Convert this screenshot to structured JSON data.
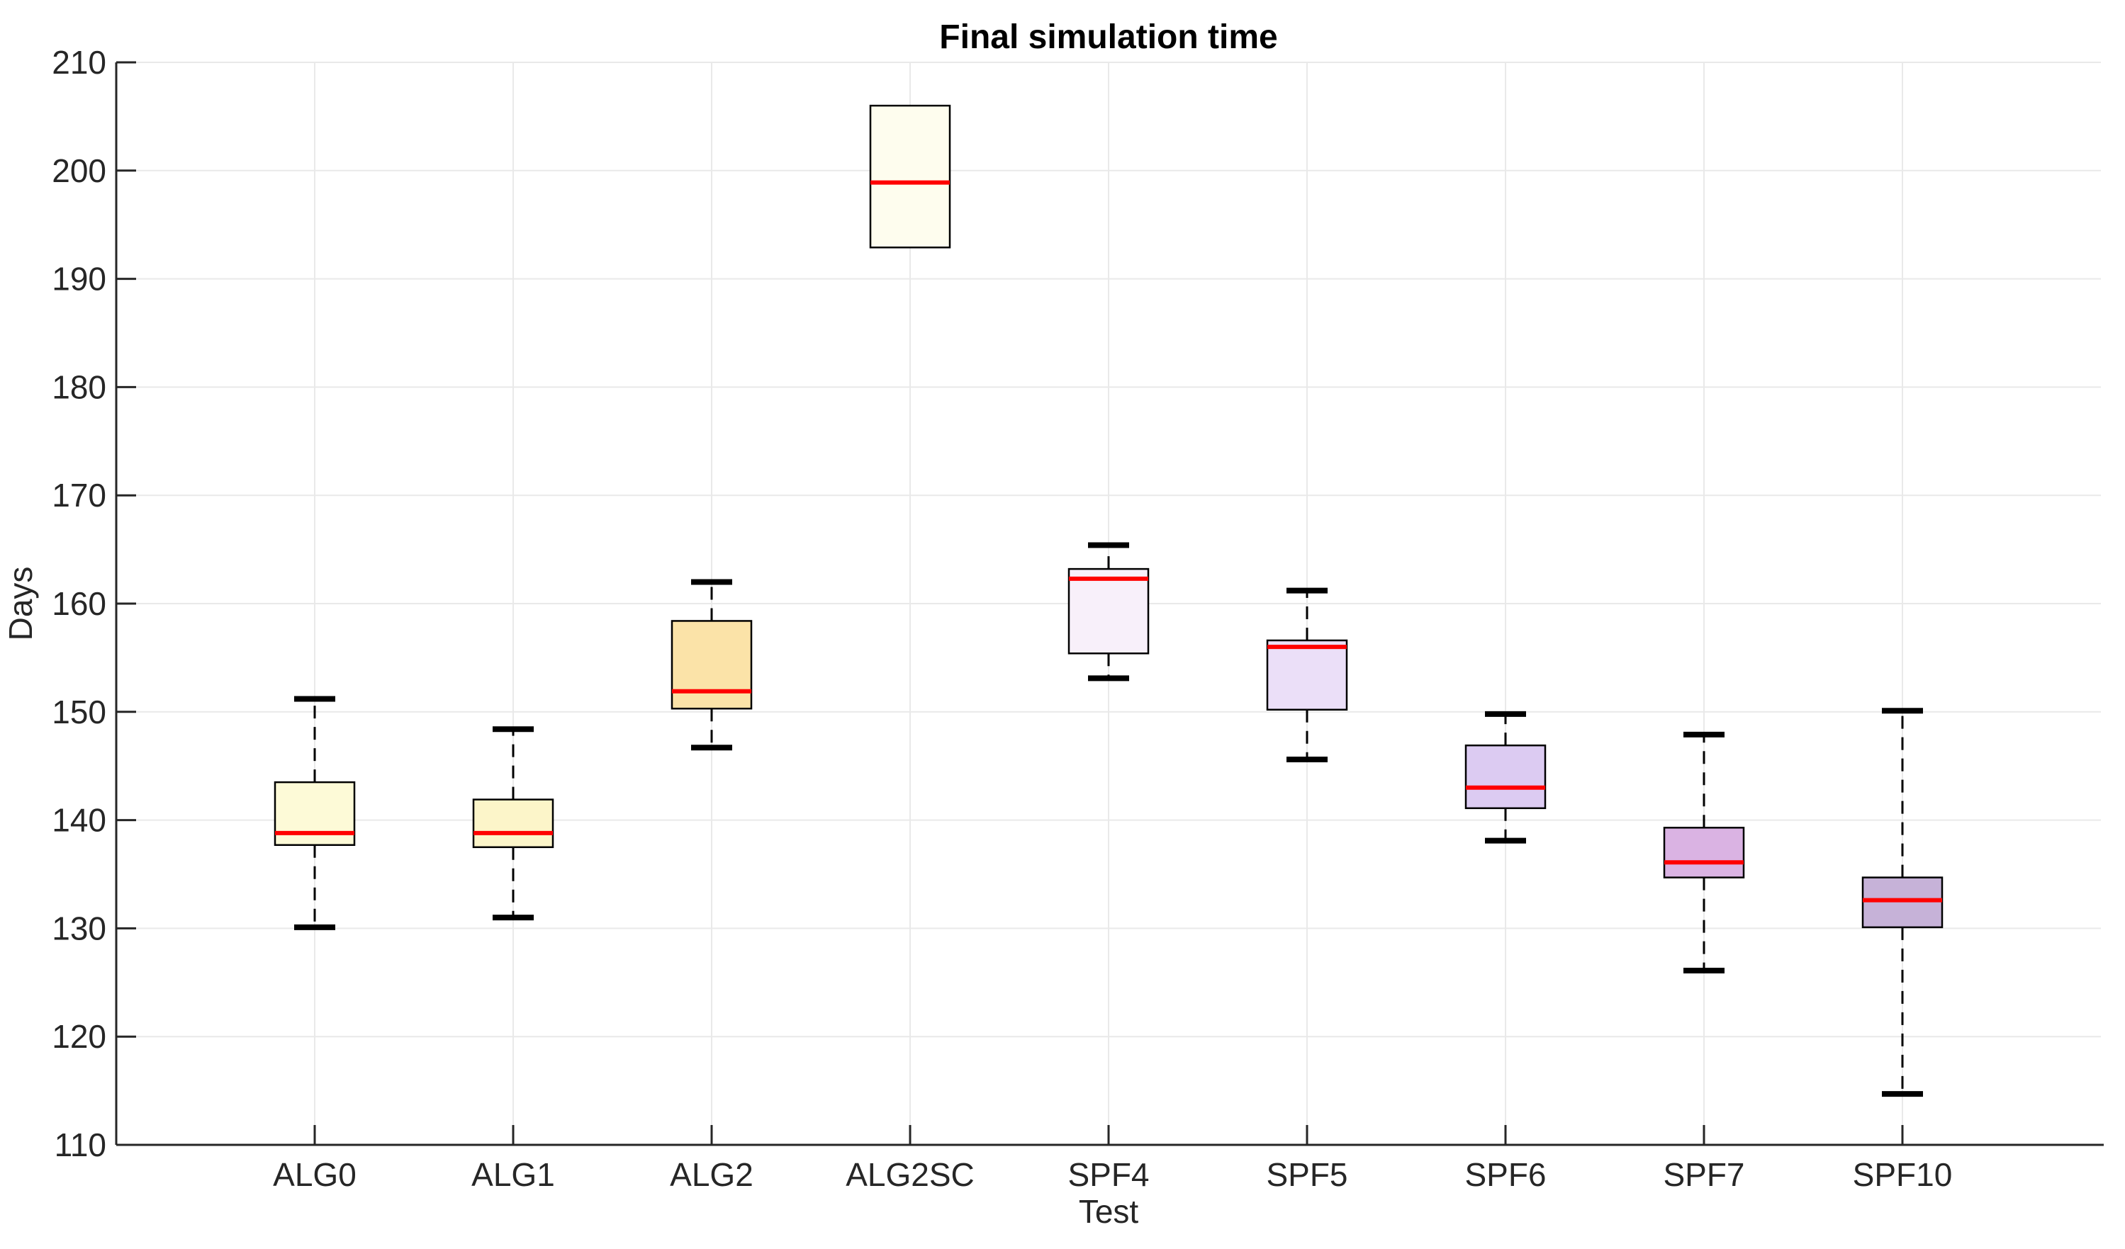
{
  "title": "Final simulation time",
  "colors": {
    "background": "#ffffff",
    "grid": "#e9e9e9",
    "axis": "#262626",
    "tick_label": "#262626",
    "title": "#000000",
    "median": "#ff0000",
    "box_border": "#000000",
    "whisker": "#000000"
  },
  "chart_data": {
    "type": "boxplot",
    "title": "Final simulation time",
    "xlabel": "Test",
    "ylabel": "Days",
    "ylim": [
      110,
      210
    ],
    "yticks": [
      110,
      120,
      130,
      140,
      150,
      160,
      170,
      180,
      190,
      200,
      210
    ],
    "xlim": [
      0,
      10
    ],
    "grid": true,
    "legend": false,
    "categories": [
      "ALG0",
      "ALG1",
      "ALG2",
      "ALG2SC",
      "SPF4",
      "SPF5",
      "SPF6",
      "SPF7",
      "SPF10"
    ],
    "positions": [
      1,
      2,
      3,
      4,
      5,
      6,
      7,
      8,
      9
    ],
    "boxes": [
      {
        "name": "ALG0",
        "low": 130.1,
        "q1": 137.7,
        "median": 138.8,
        "q3": 143.5,
        "high": 151.2,
        "fill": "#fdfad7"
      },
      {
        "name": "ALG1",
        "low": 131.0,
        "q1": 137.5,
        "median": 138.8,
        "q3": 141.9,
        "high": 148.4,
        "fill": "#fcf5c9"
      },
      {
        "name": "ALG2",
        "low": 146.7,
        "q1": 150.3,
        "median": 151.9,
        "q3": 158.4,
        "high": 162.0,
        "fill": "#fbe3a8"
      },
      {
        "name": "ALG2SC",
        "low": 193.2,
        "q1": 192.9,
        "median": 198.9,
        "q3": 206.0,
        "high": 205.8,
        "fill": "#fefdee"
      },
      {
        "name": "SPF4",
        "low": 153.1,
        "q1": 155.4,
        "median": 162.3,
        "q3": 163.2,
        "high": 165.4,
        "fill": "#f8f0fa"
      },
      {
        "name": "SPF5",
        "low": 145.6,
        "q1": 150.2,
        "median": 156.0,
        "q3": 156.6,
        "high": 161.2,
        "fill": "#ebdff8"
      },
      {
        "name": "SPF6",
        "low": 138.1,
        "q1": 141.1,
        "median": 143.0,
        "q3": 146.9,
        "high": 149.8,
        "fill": "#dccbf2"
      },
      {
        "name": "SPF7",
        "low": 126.1,
        "q1": 134.7,
        "median": 136.1,
        "q3": 139.3,
        "high": 147.9,
        "fill": "#dab3e3"
      },
      {
        "name": "SPF10",
        "low": 114.7,
        "q1": 130.1,
        "median": 132.6,
        "q3": 134.7,
        "high": 150.1,
        "fill": "#c6b2d8"
      }
    ]
  }
}
